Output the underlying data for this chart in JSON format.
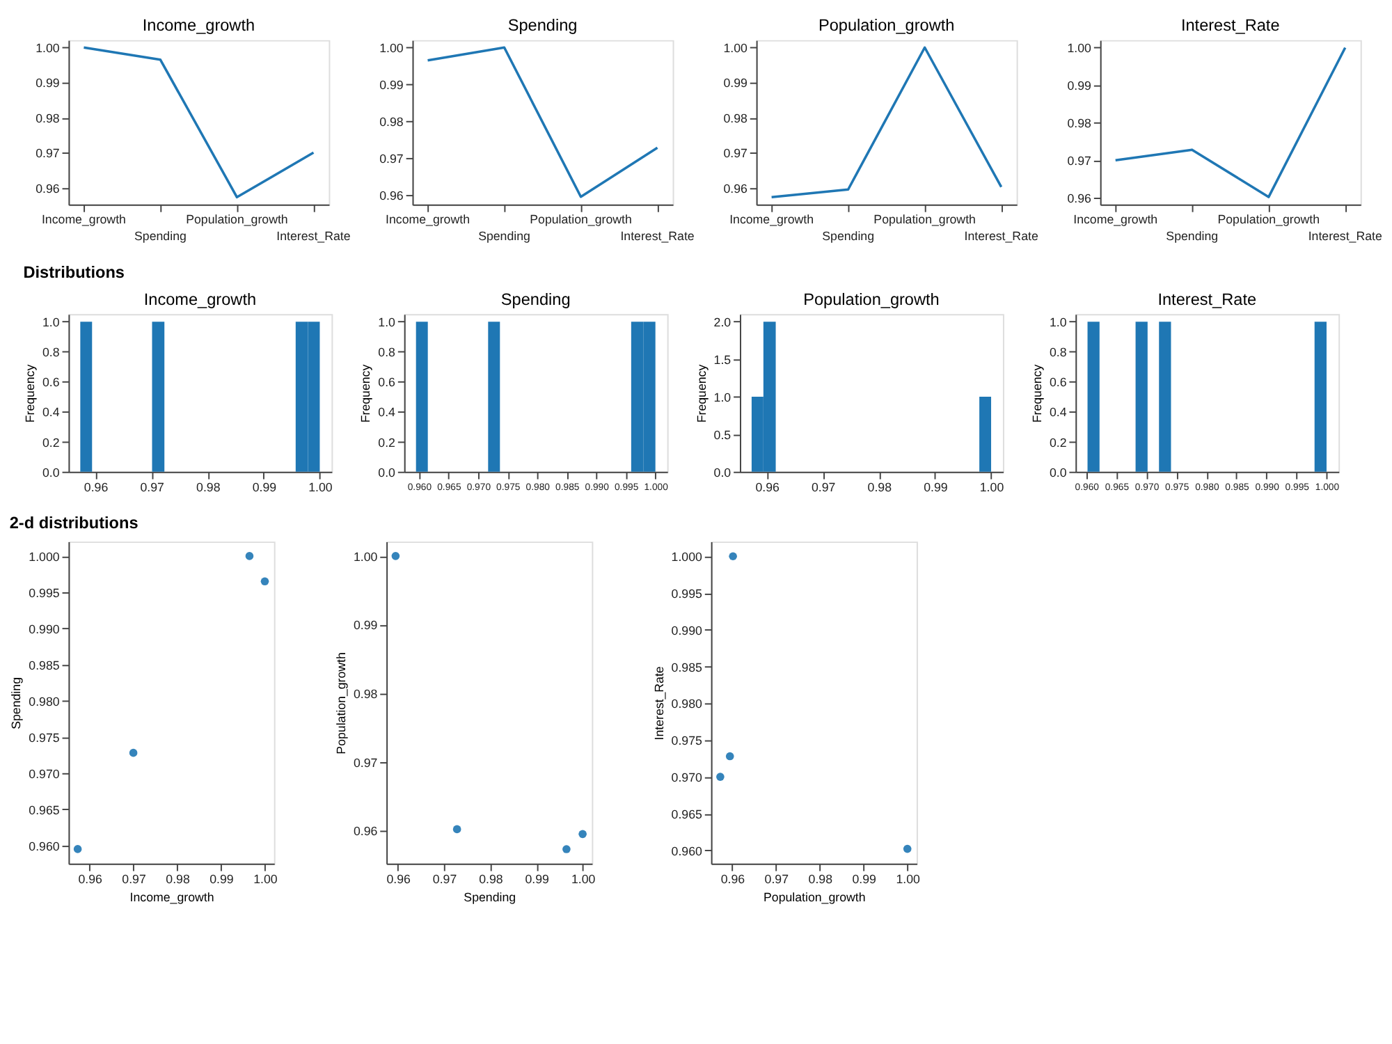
{
  "chart_data": [
    {
      "type": "line",
      "title": "Income_growth",
      "categories": [
        "Income_growth",
        "Spending",
        "Population_growth",
        "Interest_Rate"
      ],
      "values": [
        1.0,
        0.9965,
        0.9573,
        0.97
      ],
      "color": "#1f77b4",
      "ylim": [
        0.9552,
        1.0021
      ],
      "yticks": [
        0.96,
        0.97,
        0.98,
        0.99,
        {
          "value": 1,
          "label": "1.00"
        }
      ],
      "grid": false,
      "marker": "none",
      "line_style": "solid"
    },
    {
      "type": "line",
      "title": "Spending",
      "categories": [
        "Income_growth",
        "Spending",
        "Population_growth",
        "Interest_Rate"
      ],
      "values": [
        0.9965,
        1.0,
        0.9595,
        0.9728
      ],
      "color": "#1f77b4",
      "ylim": [
        0.9574,
        1.002
      ],
      "yticks": [
        0.96,
        0.97,
        0.98,
        0.99,
        {
          "value": 1,
          "label": "1.00"
        }
      ],
      "grid": false,
      "marker": "none",
      "line_style": "solid"
    },
    {
      "type": "line",
      "title": "Population_growth",
      "categories": [
        "Income_growth",
        "Spending",
        "Population_growth",
        "Interest_Rate"
      ],
      "values": [
        0.9573,
        0.9595,
        1.0,
        0.9602
      ],
      "color": "#1f77b4",
      "ylim": [
        0.9552,
        1.0021
      ],
      "yticks": [
        0.96,
        0.97,
        0.98,
        0.99,
        {
          "value": 1,
          "label": "1.00"
        }
      ],
      "grid": false,
      "marker": "none",
      "line_style": "solid"
    },
    {
      "type": "line",
      "title": "Interest_Rate",
      "categories": [
        "Income_growth",
        "Spending",
        "Population_growth",
        "Interest_Rate"
      ],
      "values": [
        0.97,
        0.9728,
        0.9602,
        1.0
      ],
      "color": "#1f77b4",
      "ylim": [
        0.9582,
        1.002
      ],
      "yticks": [
        0.96,
        0.97,
        0.98,
        0.99,
        {
          "value": 1,
          "label": "1.00"
        }
      ],
      "grid": false,
      "marker": "none",
      "line_style": "solid"
    },
    {
      "type": "histogram",
      "title": "Income_growth",
      "annotations": [
        "Distributions"
      ],
      "ylabel": "Frequency",
      "bins": [
        0.9573,
        0.9594,
        0.9701,
        0.9723,
        0.9957,
        0.9979,
        1.0
      ],
      "values": [
        1,
        0,
        1,
        0,
        1,
        1
      ],
      "color": "#1f77b4",
      "xlim": [
        0.9552,
        1.0021
      ],
      "xticks": [
        0.96,
        0.97,
        0.98,
        0.99,
        {
          "value": 1,
          "label": "1.00"
        }
      ],
      "ylim": [
        0,
        1.05
      ],
      "yticks": [
        {
          "value": 0,
          "label": "0.0"
        },
        0.2,
        0.4,
        0.6,
        0.8,
        {
          "value": 1,
          "label": "1.0"
        }
      ],
      "grid": false
    },
    {
      "type": "histogram",
      "title": "Spending",
      "ylabel": "Frequency",
      "bins": [
        0.9595,
        0.9615,
        0.9717,
        0.9737,
        0.9959,
        0.998,
        1.0
      ],
      "values": [
        1,
        0,
        1,
        0,
        1,
        1
      ],
      "color": "#1f77b4",
      "xlim": [
        0.9575,
        1.002
      ],
      "xticks": [
        {
          "value": 0.96,
          "label": "0.960"
        },
        0.965,
        {
          "value": 0.97,
          "label": "0.970"
        },
        0.975,
        {
          "value": 0.98,
          "label": "0.980"
        },
        0.985,
        {
          "value": 0.99,
          "label": "0.990"
        },
        0.995,
        {
          "value": 1,
          "label": "1.000"
        }
      ],
      "ylim": [
        0,
        1.05
      ],
      "yticks": [
        {
          "value": 0,
          "label": "0.0"
        },
        0.2,
        0.4,
        0.6,
        0.8,
        {
          "value": 1,
          "label": "1.0"
        }
      ],
      "grid": false
    },
    {
      "type": "histogram",
      "title": "Population_growth",
      "ylabel": "Frequency",
      "bins": [
        0.9573,
        0.9594,
        0.9616,
        0.9979,
        1.0
      ],
      "values": [
        1,
        2,
        0,
        1
      ],
      "color": "#1f77b4",
      "xlim": [
        0.9552,
        1.0021
      ],
      "xticks": [
        0.96,
        0.97,
        0.98,
        0.99,
        {
          "value": 1,
          "label": "1.00"
        }
      ],
      "ylim": [
        0,
        2.1
      ],
      "yticks": [
        {
          "value": 0,
          "label": "0.0"
        },
        0.5,
        {
          "value": 1,
          "label": "1.0"
        },
        1.5,
        {
          "value": 2,
          "label": "2.0"
        }
      ],
      "grid": false
    },
    {
      "type": "histogram",
      "title": "Interest_Rate",
      "ylabel": "Frequency",
      "bins": [
        0.9602,
        0.9622,
        0.9682,
        0.9702,
        0.9721,
        0.9741,
        0.998,
        1.0
      ],
      "values": [
        1,
        0,
        1,
        0,
        1,
        0,
        1
      ],
      "color": "#1f77b4",
      "xlim": [
        0.9582,
        1.002
      ],
      "xticks": [
        {
          "value": 0.96,
          "label": "0.960"
        },
        0.965,
        {
          "value": 0.97,
          "label": "0.970"
        },
        0.975,
        {
          "value": 0.98,
          "label": "0.980"
        },
        0.985,
        {
          "value": 0.99,
          "label": "0.990"
        },
        0.995,
        {
          "value": 1,
          "label": "1.000"
        }
      ],
      "ylim": [
        0,
        1.05
      ],
      "yticks": [
        {
          "value": 0,
          "label": "0.0"
        },
        0.2,
        0.4,
        0.6,
        0.8,
        {
          "value": 1,
          "label": "1.0"
        }
      ],
      "grid": false
    },
    {
      "type": "scatter",
      "annotations": [
        "2-d distributions"
      ],
      "xlabel": "Income_growth",
      "ylabel": "Spending",
      "x": [
        1.0,
        0.9965,
        0.9573,
        0.97
      ],
      "values": [
        0.9965,
        1.0,
        0.9595,
        0.9728
      ],
      "color": "#1f77b4",
      "marker": "circle",
      "xlim": [
        0.9552,
        1.0021
      ],
      "xticks": [
        0.96,
        0.97,
        0.98,
        0.99,
        {
          "value": 1,
          "label": "1.00"
        }
      ],
      "ylim": [
        0.9575,
        1.002
      ],
      "yticks": [
        {
          "value": 0.96,
          "label": "0.960"
        },
        0.965,
        {
          "value": 0.97,
          "label": "0.970"
        },
        0.975,
        {
          "value": 0.98,
          "label": "0.980"
        },
        0.985,
        {
          "value": 0.99,
          "label": "0.990"
        },
        0.995,
        {
          "value": 1,
          "label": "1.000"
        }
      ],
      "grid": false
    },
    {
      "type": "scatter",
      "xlabel": "Spending",
      "ylabel": "Population_growth",
      "x": [
        0.9965,
        1.0,
        0.9595,
        0.9728
      ],
      "values": [
        0.9573,
        0.9595,
        1.0,
        0.9602
      ],
      "color": "#1f77b4",
      "marker": "circle",
      "xlim": [
        0.9575,
        1.002
      ],
      "xticks": [
        0.96,
        0.97,
        0.98,
        0.99,
        {
          "value": 1,
          "label": "1.00"
        }
      ],
      "ylim": [
        0.9552,
        1.0021
      ],
      "yticks": [
        0.96,
        0.97,
        0.98,
        0.99,
        {
          "value": 1,
          "label": "1.00"
        }
      ],
      "grid": false
    },
    {
      "type": "scatter",
      "xlabel": "Population_growth",
      "ylabel": "Interest_Rate",
      "x": [
        0.9573,
        0.9595,
        1.0,
        0.9602
      ],
      "values": [
        0.97,
        0.9728,
        0.9602,
        1.0
      ],
      "color": "#1f77b4",
      "marker": "circle",
      "xlim": [
        0.9552,
        1.0021
      ],
      "xticks": [
        0.96,
        0.97,
        0.98,
        0.99,
        {
          "value": 1,
          "label": "1.00"
        }
      ],
      "ylim": [
        0.9582,
        1.002
      ],
      "yticks": [
        {
          "value": 0.96,
          "label": "0.960"
        },
        0.965,
        {
          "value": 0.97,
          "label": "0.970"
        },
        0.975,
        {
          "value": 0.98,
          "label": "0.980"
        },
        0.985,
        {
          "value": 0.99,
          "label": "0.990"
        },
        0.995,
        {
          "value": 1,
          "label": "1.000"
        }
      ],
      "grid": false
    }
  ]
}
